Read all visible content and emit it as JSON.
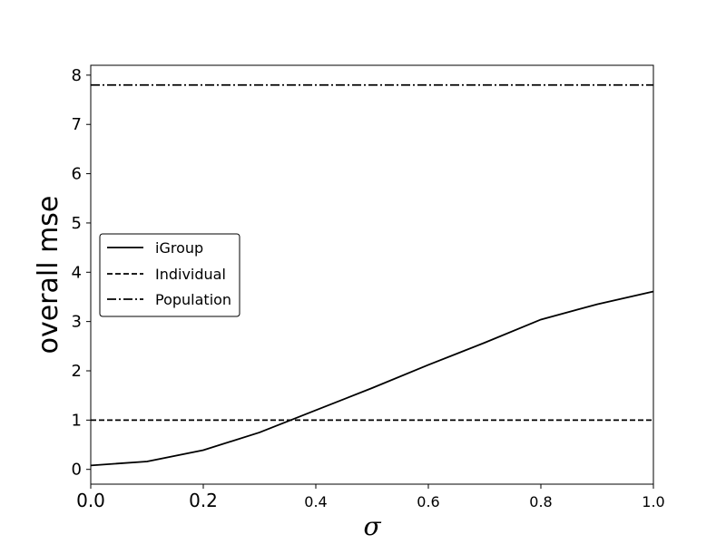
{
  "chart_data": {
    "type": "line",
    "xlabel": "σ",
    "ylabel": "overall mse",
    "xlim": [
      0.0,
      1.0
    ],
    "ylim": [
      -0.3,
      8.2
    ],
    "x_ticks": [
      "0.0",
      "0.2",
      "0.4",
      "0.6",
      "0.8",
      "1.0"
    ],
    "y_ticks": [
      "0",
      "1",
      "2",
      "3",
      "4",
      "5",
      "6",
      "7",
      "8"
    ],
    "grid": false,
    "legend_placement": "center-left",
    "series": [
      {
        "name": "iGroup",
        "style": "solid",
        "x": [
          0.0,
          0.1,
          0.2,
          0.3,
          0.4,
          0.5,
          0.6,
          0.7,
          0.8,
          0.9,
          1.0
        ],
        "y": [
          0.08,
          0.16,
          0.39,
          0.75,
          1.2,
          1.65,
          2.12,
          2.57,
          3.04,
          3.35,
          3.61
        ]
      },
      {
        "name": "Individual",
        "style": "dashed",
        "x": [
          0.0,
          1.0
        ],
        "y": [
          1.0,
          1.0
        ]
      },
      {
        "name": "Population",
        "style": "dashdot",
        "x": [
          0.0,
          1.0
        ],
        "y": [
          7.8,
          7.8
        ]
      }
    ]
  }
}
